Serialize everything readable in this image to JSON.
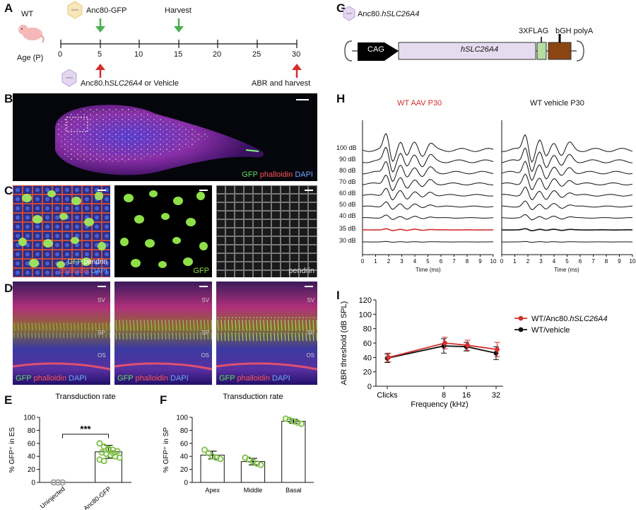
{
  "panels": {
    "A": "A",
    "B": "B",
    "C": "C",
    "D": "D",
    "E": "E",
    "F": "F",
    "G": "G",
    "H": "H",
    "I": "I"
  },
  "panelA": {
    "wt": "WT",
    "age": "Age (P)",
    "ticks": [
      "0",
      "5",
      "10",
      "15",
      "20",
      "25",
      "30"
    ],
    "top_labels": {
      "gfp": "Anc80-GFP",
      "harvest": "Harvest"
    },
    "bottom_labels": {
      "treat_prefix": "Anc80.h",
      "treat_gene": "SLC26A4",
      "treat_suffix": " or Vehicle",
      "abr": "ABR and harvest"
    },
    "colors": {
      "top_arrow": "#4caf50",
      "bottom_arrow": "#d32f2f"
    }
  },
  "panelB": {
    "label_gfp": "GFP",
    "label_phal": "phalloidin",
    "label_dapi": "DAPI"
  },
  "panelC": {
    "c1_gfp": "GFP",
    "c1_pendrin": "pendrin",
    "c1_phal": "phalloidin",
    "c1_dapi": "DAPI",
    "c2": "GFP",
    "c3": "pendrin"
  },
  "panelD": {
    "gfp": "GFP",
    "phal": "phalloidin",
    "dapi": "DAPI",
    "sv": "SV",
    "sp": "SP",
    "os": "OS"
  },
  "panelG": {
    "title_prefix": "Anc80.",
    "title_gene": "hSLC26A4",
    "cag": "CAG",
    "gene": "hSLC26A4",
    "flag": "3XFLAG",
    "polya": "bGH polyA",
    "colors": {
      "gene": "#e6dcef",
      "flag": "#b5dea0",
      "polya": "#8b4513",
      "cag": "#000000"
    }
  },
  "panelH": {
    "title_aav": "WT AAV P30",
    "title_vehicle": "WT vehicle P30",
    "levels": [
      "100 dB",
      "90 dB",
      "80 dB",
      "70 dB",
      "60 dB",
      "50 dB",
      "40 dB",
      "35 dB",
      "30 dB"
    ],
    "threshold_level": "35 dB",
    "xticks": [
      "0",
      "1",
      "2",
      "3",
      "4",
      "5",
      "6",
      "7",
      "8",
      "9",
      "10"
    ],
    "xlabel": "Time (ms)",
    "colors": {
      "aav_title": "#d32f2f",
      "threshold_trace": "#d32f2f"
    }
  },
  "chart_data": [
    {
      "type": "bar",
      "panel": "E",
      "title": "Transduction rate",
      "ylabel": "% GFP+ in ES",
      "categories": [
        "Uninjected",
        "Anc80-GFP"
      ],
      "values": [
        0,
        47
      ],
      "errors": [
        0,
        10
      ],
      "points": [
        [
          0,
          0,
          0
        ],
        [
          60,
          55,
          52,
          50,
          48,
          46,
          44,
          42,
          40,
          38,
          35,
          33,
          50,
          45
        ]
      ],
      "ylim": [
        0,
        100
      ],
      "yticks": [
        0,
        20,
        40,
        60,
        80,
        100
      ],
      "significance": "***",
      "colors": {
        "uninjected": "#9e9e9e",
        "gfp": "#7cc043"
      }
    },
    {
      "type": "bar",
      "panel": "F",
      "title": "Transduction rate",
      "ylabel": "% GFP+ in SP",
      "categories": [
        "Apex",
        "Middle",
        "Basal"
      ],
      "values": [
        42,
        32,
        94
      ],
      "errors": [
        6,
        5,
        3
      ],
      "points": [
        [
          50,
          45,
          40,
          38,
          36
        ],
        [
          38,
          35,
          32,
          29,
          27
        ],
        [
          98,
          96,
          94,
          92,
          90
        ]
      ],
      "ylim": [
        0,
        100
      ],
      "yticks": [
        0,
        20,
        40,
        60,
        80,
        100
      ],
      "colors": {
        "points": "#7cc043"
      }
    },
    {
      "type": "line",
      "panel": "I",
      "ylabel": "ABR threshold (dB SPL)",
      "xlabel": "Frequency (kHz)",
      "categories": [
        "Clicks",
        "8",
        "16",
        "32"
      ],
      "ylim": [
        0,
        120
      ],
      "yticks": [
        0,
        20,
        40,
        60,
        80,
        100,
        120
      ],
      "series": [
        {
          "name_prefix": "WT/Anc80.",
          "name_gene": "hSLC26A4",
          "values": [
            40,
            60,
            57,
            51
          ],
          "errors": [
            6,
            8,
            7,
            10
          ],
          "color": "#d32f2f"
        },
        {
          "name": "WT/vehicle",
          "values": [
            39,
            56,
            55,
            46
          ],
          "errors": [
            6,
            10,
            6,
            9
          ],
          "color": "#111111"
        }
      ],
      "legend": "top-right"
    }
  ]
}
